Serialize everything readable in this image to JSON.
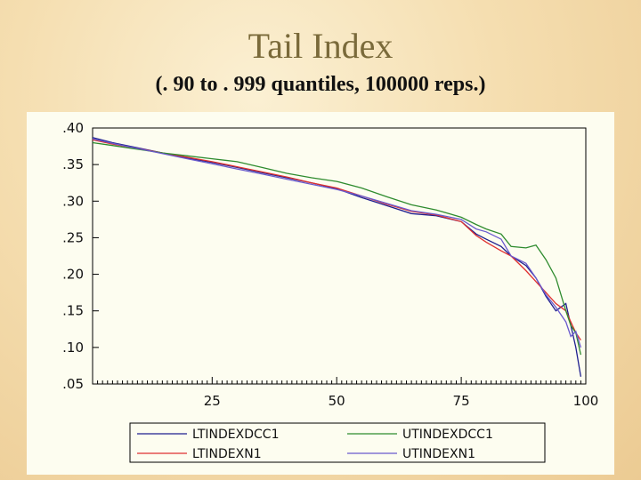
{
  "slide": {
    "title": "Tail Index",
    "subtitle": "(. 90 to . 999 quantiles,  100000 reps.)"
  },
  "chart_data": {
    "type": "line",
    "title": "",
    "xlabel": "",
    "ylabel": "",
    "xlim": [
      1,
      100
    ],
    "ylim": [
      0.05,
      0.4
    ],
    "x_ticks": [
      25,
      50,
      75,
      100
    ],
    "x_tick_labels": [
      "25",
      "50",
      "75",
      "100"
    ],
    "y_ticks": [
      0.05,
      0.1,
      0.15,
      0.2,
      0.25,
      0.3,
      0.35,
      0.4
    ],
    "y_tick_labels": [
      ".05",
      ".10",
      ".15",
      ".20",
      ".25",
      ".30",
      ".35",
      ".40"
    ],
    "grid": false,
    "legend_position": "bottom",
    "x": [
      1,
      5,
      10,
      15,
      20,
      25,
      30,
      35,
      40,
      45,
      50,
      55,
      60,
      65,
      70,
      75,
      78,
      80,
      83,
      85,
      88,
      90,
      92,
      94,
      96,
      97,
      98,
      99
    ],
    "series": [
      {
        "name": "LTINDEXDCC1",
        "color": "#1f1f8f",
        "values": [
          0.387,
          0.38,
          0.373,
          0.366,
          0.359,
          0.353,
          0.346,
          0.339,
          0.332,
          0.325,
          0.317,
          0.305,
          0.294,
          0.283,
          0.28,
          0.272,
          0.255,
          0.248,
          0.238,
          0.225,
          0.212,
          0.195,
          0.17,
          0.15,
          0.16,
          0.13,
          0.1,
          0.06
        ]
      },
      {
        "name": "LTINDEXN1",
        "color": "#e03030",
        "values": [
          0.384,
          0.378,
          0.372,
          0.366,
          0.36,
          0.354,
          0.347,
          0.34,
          0.333,
          0.325,
          0.318,
          0.307,
          0.296,
          0.286,
          0.281,
          0.272,
          0.253,
          0.244,
          0.232,
          0.225,
          0.205,
          0.19,
          0.175,
          0.16,
          0.15,
          0.135,
          0.12,
          0.11
        ]
      },
      {
        "name": "UTINDEXDCC1",
        "color": "#2e8b2e",
        "values": [
          0.38,
          0.376,
          0.371,
          0.366,
          0.362,
          0.358,
          0.354,
          0.346,
          0.338,
          0.332,
          0.327,
          0.318,
          0.306,
          0.295,
          0.288,
          0.278,
          0.268,
          0.262,
          0.255,
          0.238,
          0.236,
          0.24,
          0.22,
          0.195,
          0.15,
          0.13,
          0.12,
          0.09
        ]
      },
      {
        "name": "UTINDEXN1",
        "color": "#6a5acd",
        "values": [
          0.385,
          0.379,
          0.372,
          0.365,
          0.358,
          0.351,
          0.344,
          0.337,
          0.33,
          0.323,
          0.316,
          0.307,
          0.297,
          0.287,
          0.282,
          0.275,
          0.262,
          0.258,
          0.248,
          0.225,
          0.215,
          0.195,
          0.172,
          0.155,
          0.135,
          0.115,
          0.122,
          0.1
        ]
      }
    ]
  }
}
